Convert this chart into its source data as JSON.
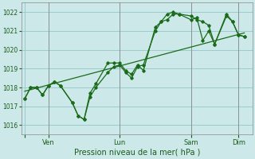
{
  "xlabel": "Pression niveau de la mer( hPa )",
  "ylim": [
    1015.5,
    1022.5
  ],
  "yticks": [
    1016,
    1017,
    1018,
    1019,
    1020,
    1021,
    1022
  ],
  "background_color": "#cce8e8",
  "grid_color": "#99cccc",
  "line_color": "#1a6b1a",
  "tick_label_color": "#1a5c1a",
  "xlabel_color": "#1a5c1a",
  "xtick_positions": [
    0,
    36,
    144,
    252,
    324
  ],
  "xtick_labels": [
    "",
    "Ven",
    "Lun",
    "Sam",
    "Dim"
  ],
  "series1": [
    [
      0,
      1017.4
    ],
    [
      9,
      1018.0
    ],
    [
      18,
      1018.0
    ],
    [
      27,
      1017.6
    ],
    [
      36,
      1018.1
    ],
    [
      45,
      1018.3
    ],
    [
      54,
      1018.1
    ],
    [
      72,
      1017.2
    ],
    [
      81,
      1016.5
    ],
    [
      90,
      1016.3
    ],
    [
      99,
      1017.5
    ],
    [
      108,
      1018.0
    ],
    [
      126,
      1018.8
    ],
    [
      135,
      1019.1
    ],
    [
      144,
      1019.2
    ],
    [
      153,
      1018.8
    ],
    [
      162,
      1018.5
    ],
    [
      171,
      1019.1
    ],
    [
      180,
      1019.2
    ],
    [
      198,
      1021.0
    ],
    [
      207,
      1021.5
    ],
    [
      216,
      1021.9
    ],
    [
      225,
      1022.0
    ],
    [
      234,
      1021.9
    ],
    [
      252,
      1021.8
    ],
    [
      261,
      1021.6
    ],
    [
      270,
      1021.5
    ],
    [
      279,
      1021.3
    ],
    [
      288,
      1020.3
    ],
    [
      306,
      1021.8
    ],
    [
      315,
      1021.5
    ],
    [
      324,
      1020.8
    ],
    [
      333,
      1020.7
    ]
  ],
  "series2": [
    [
      0,
      1017.4
    ],
    [
      9,
      1018.0
    ],
    [
      18,
      1018.0
    ],
    [
      27,
      1017.6
    ],
    [
      36,
      1018.1
    ],
    [
      45,
      1018.3
    ],
    [
      54,
      1018.1
    ],
    [
      72,
      1017.2
    ],
    [
      81,
      1016.5
    ],
    [
      90,
      1016.3
    ],
    [
      99,
      1017.7
    ],
    [
      108,
      1018.2
    ],
    [
      126,
      1019.3
    ],
    [
      135,
      1019.3
    ],
    [
      144,
      1019.3
    ],
    [
      153,
      1018.9
    ],
    [
      162,
      1018.7
    ],
    [
      171,
      1019.2
    ],
    [
      180,
      1018.9
    ],
    [
      198,
      1021.2
    ],
    [
      207,
      1021.5
    ],
    [
      216,
      1021.6
    ],
    [
      225,
      1021.9
    ],
    [
      234,
      1021.9
    ],
    [
      252,
      1021.6
    ],
    [
      261,
      1021.7
    ],
    [
      270,
      1020.5
    ],
    [
      279,
      1021.0
    ],
    [
      288,
      1020.3
    ],
    [
      306,
      1021.9
    ],
    [
      315,
      1021.5
    ],
    [
      324,
      1020.8
    ],
    [
      333,
      1020.7
    ]
  ],
  "series3_linear": [
    [
      0,
      1017.8
    ],
    [
      333,
      1020.9
    ]
  ],
  "figsize": [
    3.2,
    2.0
  ],
  "dpi": 100
}
